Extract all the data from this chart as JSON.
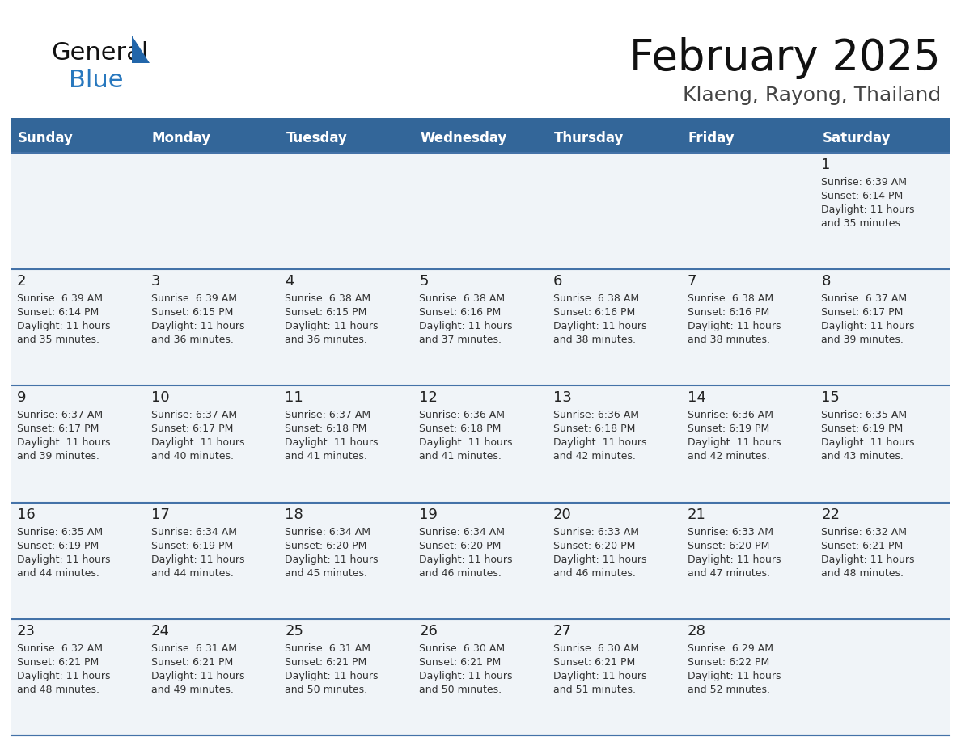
{
  "title": "February 2025",
  "subtitle": "Klaeng, Rayong, Thailand",
  "days_of_week": [
    "Sunday",
    "Monday",
    "Tuesday",
    "Wednesday",
    "Thursday",
    "Friday",
    "Saturday"
  ],
  "header_bg": "#336699",
  "header_text_color": "#ffffff",
  "row_bg": "#f0f4f8",
  "cell_border_color": "#4472a8",
  "day_number_color": "#222222",
  "info_text_color": "#333333",
  "title_color": "#111111",
  "subtitle_color": "#444444",
  "logo_general_color": "#111111",
  "logo_blue_color": "#2878be",
  "logo_triangle_color": "#2266aa",
  "calendar_data": [
    {
      "day": 1,
      "row": 0,
      "col": 6,
      "sunrise": "6:39 AM",
      "sunset": "6:14 PM",
      "daylight_hrs": 11,
      "daylight_min": 35
    },
    {
      "day": 2,
      "row": 1,
      "col": 0,
      "sunrise": "6:39 AM",
      "sunset": "6:14 PM",
      "daylight_hrs": 11,
      "daylight_min": 35
    },
    {
      "day": 3,
      "row": 1,
      "col": 1,
      "sunrise": "6:39 AM",
      "sunset": "6:15 PM",
      "daylight_hrs": 11,
      "daylight_min": 36
    },
    {
      "day": 4,
      "row": 1,
      "col": 2,
      "sunrise": "6:38 AM",
      "sunset": "6:15 PM",
      "daylight_hrs": 11,
      "daylight_min": 36
    },
    {
      "day": 5,
      "row": 1,
      "col": 3,
      "sunrise": "6:38 AM",
      "sunset": "6:16 PM",
      "daylight_hrs": 11,
      "daylight_min": 37
    },
    {
      "day": 6,
      "row": 1,
      "col": 4,
      "sunrise": "6:38 AM",
      "sunset": "6:16 PM",
      "daylight_hrs": 11,
      "daylight_min": 38
    },
    {
      "day": 7,
      "row": 1,
      "col": 5,
      "sunrise": "6:38 AM",
      "sunset": "6:16 PM",
      "daylight_hrs": 11,
      "daylight_min": 38
    },
    {
      "day": 8,
      "row": 1,
      "col": 6,
      "sunrise": "6:37 AM",
      "sunset": "6:17 PM",
      "daylight_hrs": 11,
      "daylight_min": 39
    },
    {
      "day": 9,
      "row": 2,
      "col": 0,
      "sunrise": "6:37 AM",
      "sunset": "6:17 PM",
      "daylight_hrs": 11,
      "daylight_min": 39
    },
    {
      "day": 10,
      "row": 2,
      "col": 1,
      "sunrise": "6:37 AM",
      "sunset": "6:17 PM",
      "daylight_hrs": 11,
      "daylight_min": 40
    },
    {
      "day": 11,
      "row": 2,
      "col": 2,
      "sunrise": "6:37 AM",
      "sunset": "6:18 PM",
      "daylight_hrs": 11,
      "daylight_min": 41
    },
    {
      "day": 12,
      "row": 2,
      "col": 3,
      "sunrise": "6:36 AM",
      "sunset": "6:18 PM",
      "daylight_hrs": 11,
      "daylight_min": 41
    },
    {
      "day": 13,
      "row": 2,
      "col": 4,
      "sunrise": "6:36 AM",
      "sunset": "6:18 PM",
      "daylight_hrs": 11,
      "daylight_min": 42
    },
    {
      "day": 14,
      "row": 2,
      "col": 5,
      "sunrise": "6:36 AM",
      "sunset": "6:19 PM",
      "daylight_hrs": 11,
      "daylight_min": 42
    },
    {
      "day": 15,
      "row": 2,
      "col": 6,
      "sunrise": "6:35 AM",
      "sunset": "6:19 PM",
      "daylight_hrs": 11,
      "daylight_min": 43
    },
    {
      "day": 16,
      "row": 3,
      "col": 0,
      "sunrise": "6:35 AM",
      "sunset": "6:19 PM",
      "daylight_hrs": 11,
      "daylight_min": 44
    },
    {
      "day": 17,
      "row": 3,
      "col": 1,
      "sunrise": "6:34 AM",
      "sunset": "6:19 PM",
      "daylight_hrs": 11,
      "daylight_min": 44
    },
    {
      "day": 18,
      "row": 3,
      "col": 2,
      "sunrise": "6:34 AM",
      "sunset": "6:20 PM",
      "daylight_hrs": 11,
      "daylight_min": 45
    },
    {
      "day": 19,
      "row": 3,
      "col": 3,
      "sunrise": "6:34 AM",
      "sunset": "6:20 PM",
      "daylight_hrs": 11,
      "daylight_min": 46
    },
    {
      "day": 20,
      "row": 3,
      "col": 4,
      "sunrise": "6:33 AM",
      "sunset": "6:20 PM",
      "daylight_hrs": 11,
      "daylight_min": 46
    },
    {
      "day": 21,
      "row": 3,
      "col": 5,
      "sunrise": "6:33 AM",
      "sunset": "6:20 PM",
      "daylight_hrs": 11,
      "daylight_min": 47
    },
    {
      "day": 22,
      "row": 3,
      "col": 6,
      "sunrise": "6:32 AM",
      "sunset": "6:21 PM",
      "daylight_hrs": 11,
      "daylight_min": 48
    },
    {
      "day": 23,
      "row": 4,
      "col": 0,
      "sunrise": "6:32 AM",
      "sunset": "6:21 PM",
      "daylight_hrs": 11,
      "daylight_min": 48
    },
    {
      "day": 24,
      "row": 4,
      "col": 1,
      "sunrise": "6:31 AM",
      "sunset": "6:21 PM",
      "daylight_hrs": 11,
      "daylight_min": 49
    },
    {
      "day": 25,
      "row": 4,
      "col": 2,
      "sunrise": "6:31 AM",
      "sunset": "6:21 PM",
      "daylight_hrs": 11,
      "daylight_min": 50
    },
    {
      "day": 26,
      "row": 4,
      "col": 3,
      "sunrise": "6:30 AM",
      "sunset": "6:21 PM",
      "daylight_hrs": 11,
      "daylight_min": 50
    },
    {
      "day": 27,
      "row": 4,
      "col": 4,
      "sunrise": "6:30 AM",
      "sunset": "6:21 PM",
      "daylight_hrs": 11,
      "daylight_min": 51
    },
    {
      "day": 28,
      "row": 4,
      "col": 5,
      "sunrise": "6:29 AM",
      "sunset": "6:22 PM",
      "daylight_hrs": 11,
      "daylight_min": 52
    }
  ],
  "num_rows": 5,
  "num_cols": 7
}
